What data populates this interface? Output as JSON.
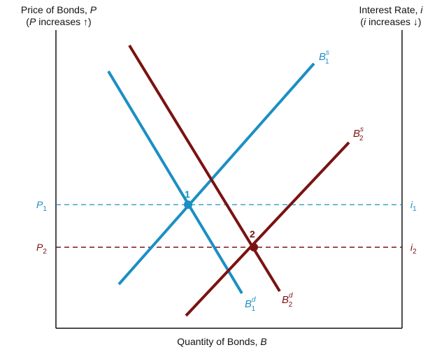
{
  "axes": {
    "y_left_title": "Price of Bonds,",
    "y_left_title_var": "P",
    "y_left_note_var": "P",
    "y_left_note": " increases",
    "y_left_note_arrow": "↑",
    "y_right_title": "Interest Rate,",
    "y_right_title_var": "i",
    "y_right_note_var": "i",
    "y_right_note": " increases",
    "y_right_note_arrow": "↓",
    "x_title": "Quantity of Bonds,",
    "x_title_var": "B"
  },
  "levels": [
    {
      "price": "P",
      "price_sub": "1",
      "rate": "i",
      "rate_sub": "1",
      "color": "#1b8fc4"
    },
    {
      "price": "P",
      "price_sub": "2",
      "rate": "i",
      "rate_sub": "2",
      "color": "#7a1212"
    }
  ],
  "curves": [
    {
      "base": "B",
      "sup": "s",
      "sub": "1",
      "color": "#1b8fc4"
    },
    {
      "base": "B",
      "sup": "d",
      "sub": "1",
      "color": "#1b8fc4"
    },
    {
      "base": "B",
      "sup": "s",
      "sub": "2",
      "color": "#7a1212"
    },
    {
      "base": "B",
      "sup": "d",
      "sub": "2",
      "color": "#7a1212"
    }
  ],
  "points": [
    {
      "label": "1",
      "color": "#1b8fc4"
    },
    {
      "label": "2",
      "color": "#7a1212"
    }
  ]
}
